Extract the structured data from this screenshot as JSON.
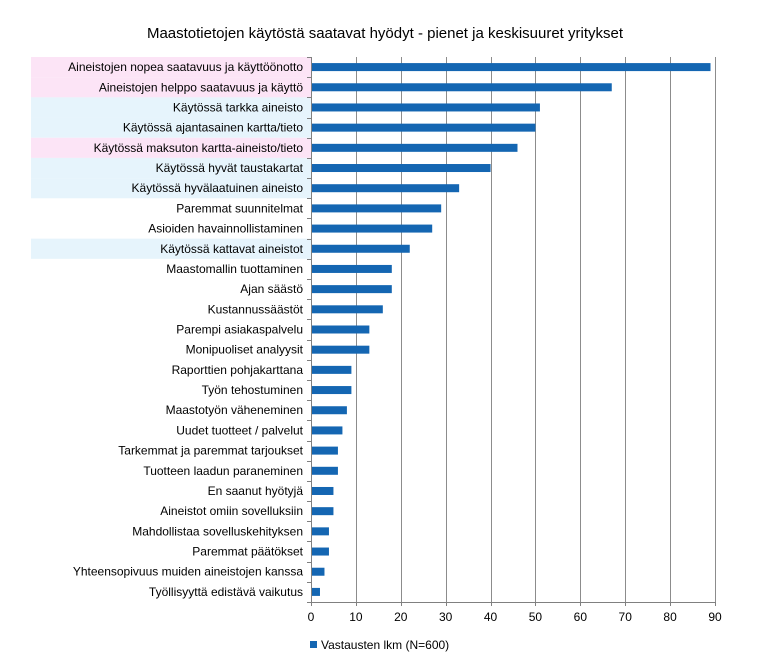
{
  "chart_data": {
    "type": "bar",
    "orientation": "horizontal",
    "title": "Maastotietojen käytöstä saatavat hyödyt - pienet ja keskisuuret yritykset",
    "xlabel": "",
    "ylabel": "",
    "xlim": [
      0,
      90
    ],
    "xticks": [
      "0",
      "10",
      "20",
      "30",
      "40",
      "50",
      "60",
      "70",
      "80",
      "90"
    ],
    "grid": true,
    "legend_position": "bottom",
    "colors": {
      "bar": "#1466B2",
      "highlight_pink": "#FCE4F6",
      "highlight_blue": "#E6F4FC",
      "grid": "#8C8C8C",
      "axis": "#808080"
    },
    "categories": [
      "Aineistojen nopea saatavuus ja käyttöönotto",
      "Aineistojen helppo saatavuus ja käyttö",
      "Käytössä tarkka aineisto",
      "Käytössä ajantasainen kartta/tieto",
      "Käytössä maksuton kartta-aineisto/tieto",
      "Käytössä hyvät taustakartat",
      "Käytössä hyvälaatuinen aineisto",
      "Paremmat suunnitelmat",
      "Asioiden havainnollistaminen",
      "Käytössä kattavat aineistot",
      "Maastomallin tuottaminen",
      "Ajan säästö",
      "Kustannussäästöt",
      "Parempi asiakaspalvelu",
      "Monipuoliset analyysit",
      "Raporttien pohjakarttana",
      "Työn tehostuminen",
      "Maastotyön väheneminen",
      "Uudet tuotteet / palvelut",
      "Tarkemmat ja paremmat tarjoukset",
      "Tuotteen laadun paraneminen",
      "En saanut hyötyjä",
      "Aineistot omiin sovelluksiin",
      "Mahdollistaa sovelluskehityksen",
      "Paremmat päätökset",
      "Yhteensopivuus muiden aineistojen kanssa",
      "Työllisyyttä edistävä vaikutus"
    ],
    "label_highlights": [
      "pink",
      "pink",
      "blue",
      "blue",
      "pink",
      "blue",
      "blue",
      "none",
      "none",
      "blue",
      "none",
      "none",
      "none",
      "none",
      "none",
      "none",
      "none",
      "none",
      "none",
      "none",
      "none",
      "none",
      "none",
      "none",
      "none",
      "none",
      "none"
    ],
    "series": [
      {
        "name": "Vastausten lkm  (N=600)",
        "values": [
          89,
          67,
          51,
          50,
          46,
          40,
          33,
          29,
          27,
          22,
          18,
          18,
          16,
          13,
          13,
          9,
          9,
          8,
          7,
          6,
          6,
          5,
          5,
          4,
          4,
          3,
          2
        ]
      }
    ]
  }
}
